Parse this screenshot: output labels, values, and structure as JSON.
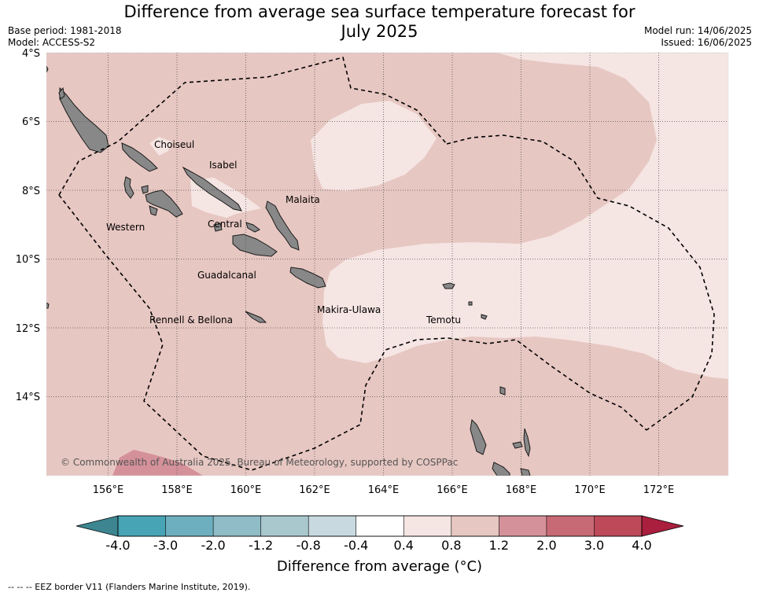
{
  "title_line1": "Difference from average sea surface temperature forecast for",
  "title_line2": "July 2025",
  "base_period": "Base period: 1981-2018",
  "model": "Model: ACCESS-S2",
  "model_run": "Model run: 14/06/2025",
  "issued": "Issued: 16/06/2025",
  "copyright": "© Commonwealth of Australia 2025, Bureau of Meteorology, supported by COSPPac",
  "footer_legend": "-- -- -- EEZ border V11 (Flanders Marine Institute, 2019).",
  "lat_ticks": [
    "4°S",
    "6°S",
    "8°S",
    "10°S",
    "12°S",
    "14°S"
  ],
  "lon_ticks": [
    "156°E",
    "158°E",
    "160°E",
    "162°E",
    "164°E",
    "166°E",
    "168°E",
    "170°E",
    "172°E"
  ],
  "provinces": [
    "Choiseul",
    "Isabel",
    "Malaita",
    "Western",
    "Central",
    "Guadalcanal",
    "Makira-Ulawa",
    "Rennell & Bellona",
    "Temotu"
  ],
  "colorbar": {
    "title": "Difference from average (°C)",
    "labels": [
      "-4.0",
      "-3.0",
      "-2.0",
      "-1.2",
      "-0.8",
      "-0.4",
      "0.4",
      "0.8",
      "1.2",
      "2.0",
      "3.0",
      "4.0"
    ],
    "colors": [
      "#3c8591",
      "#47a4b4",
      "#6eafbf",
      "#8fbcc6",
      "#a9c8cd",
      "#c8dadf",
      "#ffffff",
      "#f5e5e3",
      "#e7c7c2",
      "#d5919a",
      "#c86a75",
      "#bd4959",
      "#a91f3d"
    ]
  }
}
